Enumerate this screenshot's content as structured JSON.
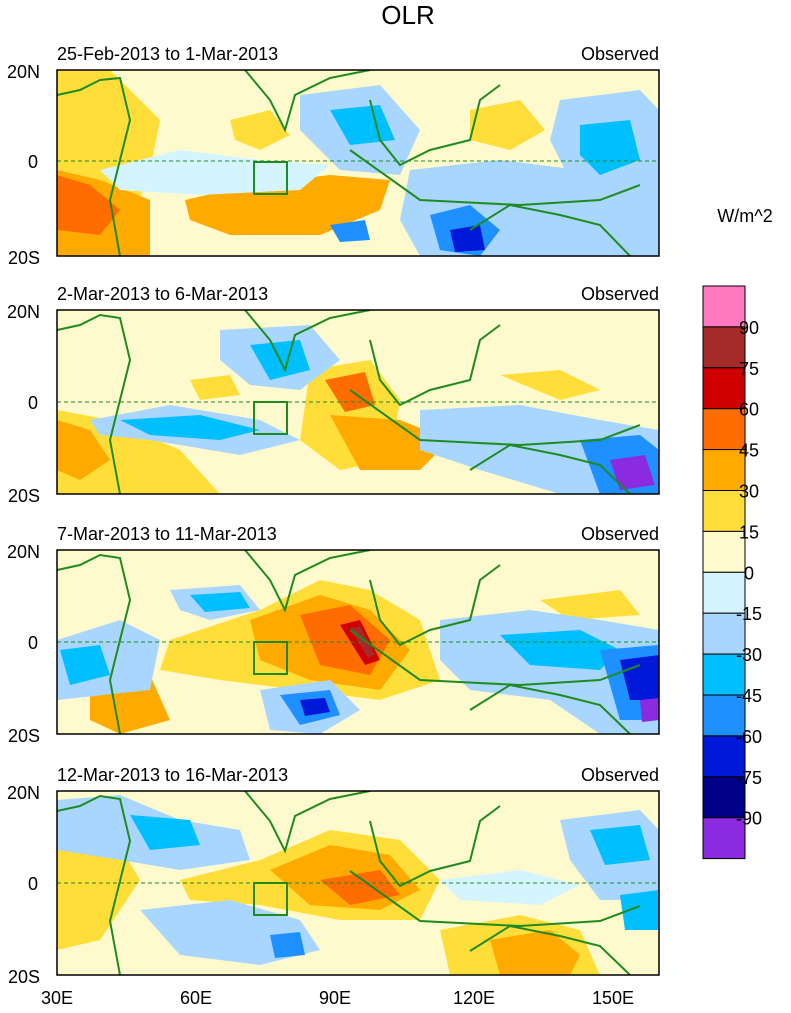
{
  "title": "OLR",
  "unit_label": "W/m^2",
  "panels": [
    {
      "period": "25-Feb-2013 to 1-Mar-2013",
      "tag": "Observed"
    },
    {
      "period": "2-Mar-2013 to 6-Mar-2013",
      "tag": "Observed"
    },
    {
      "period": "7-Mar-2013 to 11-Mar-2013",
      "tag": "Observed"
    },
    {
      "period": "12-Mar-2013 to 16-Mar-2013",
      "tag": "Observed"
    }
  ],
  "lat_labels": [
    "20N",
    "0",
    "20S"
  ],
  "lon_labels": [
    "30E",
    "60E",
    "90E",
    "120E",
    "150E"
  ],
  "lon_range": [
    30,
    160
  ],
  "lat_range": [
    -20,
    20
  ],
  "colorbar": {
    "labels": [
      "90",
      "75",
      "60",
      "45",
      "30",
      "15",
      "0",
      "-15",
      "-30",
      "-45",
      "-60",
      "-75",
      "-90"
    ],
    "colors": [
      "#ff78c0",
      "#a52a2a",
      "#d00000",
      "#ff6c00",
      "#ffaa00",
      "#ffde3a",
      "#fffacd",
      "#d4f5ff",
      "#a8d6ff",
      "#00bfff",
      "#1e90ff",
      "#0018d8",
      "#00008b",
      "#8a2be2"
    ]
  },
  "colors": {
    "coastline": "#1f8b1f",
    "background": "#fffacd"
  }
}
